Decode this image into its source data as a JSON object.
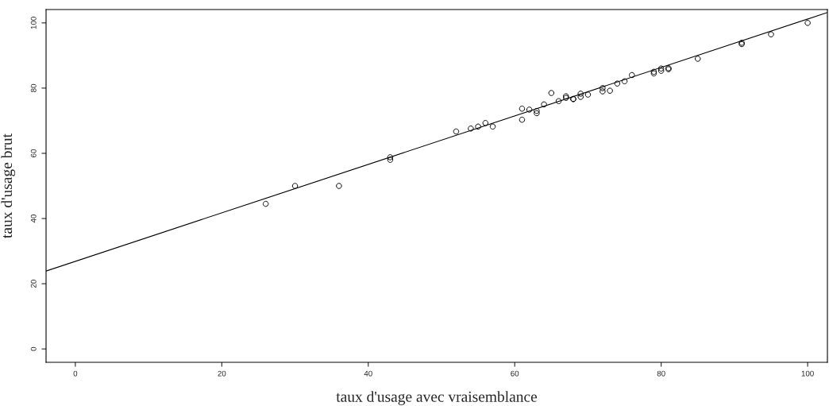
{
  "chart_data": {
    "type": "scatter",
    "xlabel": "taux d'usage avec vraisemblance",
    "ylabel": "taux d'usage brut",
    "xlim": [
      -4.0,
      102.7
    ],
    "ylim": [
      -4.1,
      104.1
    ],
    "xticks": [
      0,
      20,
      40,
      60,
      80,
      100
    ],
    "yticks": [
      0,
      20,
      40,
      60,
      80,
      100
    ],
    "grid": false,
    "legend": false,
    "marker": "circle",
    "series": [
      {
        "color": "#000000",
        "x": [
          26,
          30,
          36,
          43,
          43,
          52,
          54,
          55,
          56,
          57,
          61,
          61,
          62,
          63,
          63,
          64,
          65,
          66,
          67,
          67,
          68,
          68,
          69,
          69,
          70,
          72,
          72,
          73,
          74,
          75,
          76,
          79,
          79,
          80,
          80,
          81,
          81,
          85,
          91,
          91,
          95,
          100
        ],
        "values": [
          44.5,
          50,
          50,
          58.8,
          58,
          66.7,
          67.6,
          68.2,
          69.3,
          68.2,
          73.7,
          70.3,
          73.4,
          73,
          72.3,
          75,
          78.5,
          76,
          77,
          77.5,
          76.6,
          76.7,
          77.3,
          78.3,
          78,
          80,
          79,
          79.2,
          81.4,
          82.1,
          84,
          84.5,
          85,
          85.3,
          86,
          85.8,
          86.1,
          89,
          93.5,
          93.9,
          96.5,
          100
        ]
      },
      {
        "type": "line",
        "color": "#000000",
        "line_style": "solid",
        "marker": "none",
        "x": [
          -4.0,
          102.7
        ],
        "values": [
          23.9,
          103.2
        ]
      }
    ]
  }
}
